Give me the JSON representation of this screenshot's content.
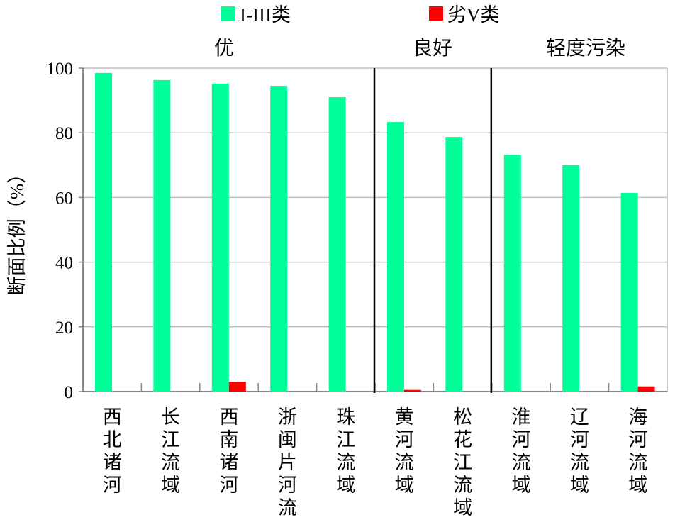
{
  "chart_data": {
    "type": "bar",
    "ylabel": "断面比例（%）",
    "ylim": [
      0,
      100
    ],
    "yticks": [
      "0",
      "20",
      "40",
      "60",
      "80",
      "100"
    ],
    "grid": true,
    "legend_position": "top",
    "categories": [
      "西北诸河",
      "长江流域",
      "西南诸河",
      "浙闽片河流",
      "珠江流域",
      "黄河流域",
      "松花江流域",
      "淮河流域",
      "辽河流域",
      "海河流域"
    ],
    "series": [
      {
        "name": "I-III类",
        "color": "#00FF99",
        "values": [
          98.5,
          96.3,
          95.2,
          94.5,
          91.0,
          83.3,
          78.7,
          73.2,
          70.0,
          61.4
        ]
      },
      {
        "name": "劣V类",
        "color": "#FF0000",
        "values": [
          0,
          0,
          3.0,
          0,
          0,
          0.5,
          0,
          0,
          0,
          1.6
        ]
      }
    ],
    "groups": [
      {
        "label": "优",
        "categories": [
          "西北诸河",
          "长江流域",
          "西南诸河",
          "浙闽片河流",
          "珠江流域"
        ]
      },
      {
        "label": "良好",
        "categories": [
          "黄河流域",
          "松花江流域"
        ]
      },
      {
        "label": "轻度污染",
        "categories": [
          "淮河流域",
          "辽河流域",
          "海河流域"
        ]
      }
    ]
  }
}
